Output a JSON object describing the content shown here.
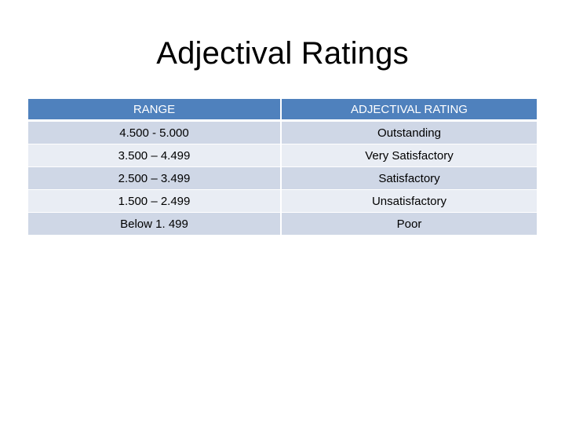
{
  "slide": {
    "title": "Adjectival Ratings"
  },
  "table": {
    "headers": [
      "RANGE",
      "ADJECTIVAL RATING"
    ],
    "rows": [
      {
        "range": "4.500  - 5.000",
        "rating": "Outstanding"
      },
      {
        "range": "3.500 – 4.499",
        "rating": "Very Satisfactory"
      },
      {
        "range": "2.500 – 3.499",
        "rating": "Satisfactory"
      },
      {
        "range": "1.500 – 2.499",
        "rating": "Unsatisfactory"
      },
      {
        "range": "Below 1. 499",
        "rating": "Poor"
      }
    ]
  },
  "colors": {
    "header_bg": "#4f81bd",
    "row_dark": "#cfd7e6",
    "row_light": "#e9edf4"
  }
}
